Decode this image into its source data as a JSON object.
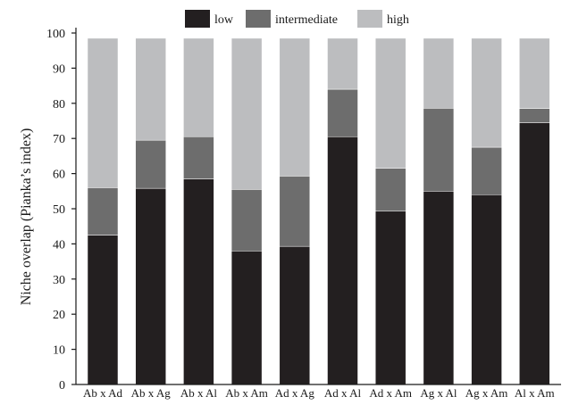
{
  "chart_data": {
    "type": "bar",
    "stacked": true,
    "categories": [
      "Ab x Ad",
      "Ab x Ag",
      "Ab x Al",
      "Ab x Am",
      "Ad x Ag",
      "Ad x Al",
      "Ad x Am",
      "Ag x Al",
      "Ag x Am",
      "Al x Am"
    ],
    "series": [
      {
        "name": "low",
        "color": "#231f20",
        "values": [
          42.5,
          55.8,
          58.5,
          38.0,
          39.3,
          70.5,
          49.3,
          55.0,
          54.0,
          74.5
        ]
      },
      {
        "name": "intermediate",
        "color": "#6d6d6d",
        "values": [
          13.5,
          13.7,
          12.0,
          17.5,
          20.0,
          13.5,
          12.2,
          23.6,
          13.5,
          4.0
        ]
      },
      {
        "name": "high",
        "color": "#bcbdbf",
        "values": [
          42.5,
          29.0,
          28.0,
          43.0,
          39.2,
          14.5,
          37.0,
          19.9,
          31.0,
          20.0
        ]
      }
    ],
    "title": "",
    "xlabel": "",
    "ylabel": "Niche overlap (Pianka’s index)",
    "ylim": [
      0,
      100
    ],
    "yticks": [
      "0",
      "10",
      "20",
      "30",
      "40",
      "50",
      "60",
      "70",
      "80",
      "90",
      "100"
    ],
    "grid": false,
    "legend_position": "top-center"
  }
}
